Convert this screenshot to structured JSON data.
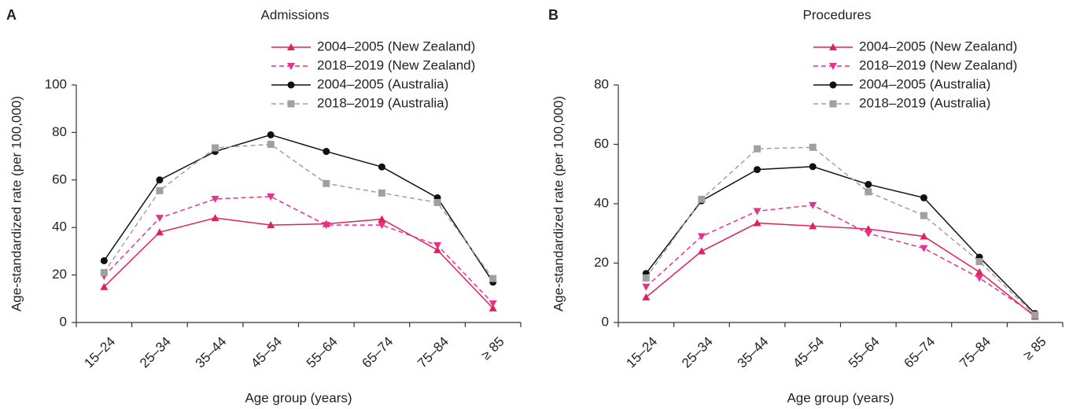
{
  "chart_data": [
    {
      "type": "line",
      "label": "A",
      "title": "Admissions",
      "xlabel": "Age group (years)",
      "ylabel": "Age-standardized rate (per 100,000)",
      "categories": [
        "15–24",
        "25–34",
        "35–44",
        "45–54",
        "55–64",
        "65–74",
        "75–84",
        "≥ 85"
      ],
      "ylim": [
        0,
        100
      ],
      "yticks": [
        0,
        20,
        40,
        60,
        80,
        100
      ],
      "legend": "upper-right",
      "series": [
        {
          "name": "2004–2005 (New Zealand)",
          "color": "#e0215a",
          "marker": "triangle-up",
          "dashed": false,
          "values": [
            15,
            38,
            44,
            41,
            41.5,
            43.5,
            30.5,
            6
          ]
        },
        {
          "name": "2018–2019 (New Zealand)",
          "color": "#e8318f",
          "marker": "triangle-down",
          "dashed": true,
          "values": [
            19.5,
            44,
            52,
            53,
            41,
            41,
            32.5,
            8
          ]
        },
        {
          "name": "2004–2005 (Australia)",
          "color": "#111111",
          "marker": "circle",
          "dashed": false,
          "values": [
            26,
            60,
            72,
            79,
            72,
            65.5,
            52.5,
            17
          ]
        },
        {
          "name": "2018–2019 (Australia)",
          "color": "#a0a0a0",
          "marker": "square",
          "dashed": true,
          "values": [
            21,
            55.5,
            73.5,
            75,
            58.5,
            54.5,
            50.5,
            18.5
          ]
        }
      ]
    },
    {
      "type": "line",
      "label": "B",
      "title": "Procedures",
      "xlabel": "Age group (years)",
      "ylabel": "Age-standardized rate (per 100,000)",
      "categories": [
        "15–24",
        "25–34",
        "35–44",
        "45–54",
        "55–64",
        "65–74",
        "75–84",
        "≥ 85"
      ],
      "ylim": [
        0,
        80
      ],
      "yticks": [
        0,
        20,
        40,
        60,
        80
      ],
      "legend": "upper-right",
      "series": [
        {
          "name": "2004–2005 (New Zealand)",
          "color": "#e0215a",
          "marker": "triangle-up",
          "dashed": false,
          "values": [
            8.5,
            24,
            33.5,
            32.5,
            31.5,
            29,
            17,
            2
          ]
        },
        {
          "name": "2018–2019 (New Zealand)",
          "color": "#e8318f",
          "marker": "triangle-down",
          "dashed": true,
          "values": [
            12,
            29,
            37.5,
            39.5,
            30,
            25,
            15,
            2.5
          ]
        },
        {
          "name": "2004–2005 (Australia)",
          "color": "#111111",
          "marker": "circle",
          "dashed": false,
          "values": [
            16.5,
            41,
            51.5,
            52.5,
            46.5,
            42,
            22,
            3
          ]
        },
        {
          "name": "2018–2019 (Australia)",
          "color": "#a0a0a0",
          "marker": "square",
          "dashed": true,
          "values": [
            15,
            41.5,
            58.5,
            59,
            44,
            36,
            20.5,
            2.5
          ]
        }
      ]
    }
  ]
}
